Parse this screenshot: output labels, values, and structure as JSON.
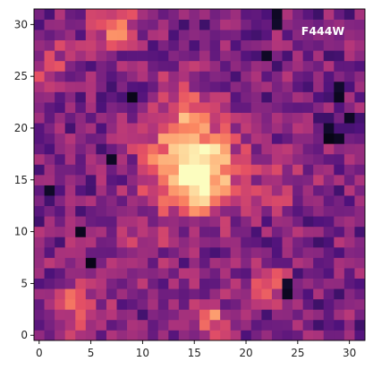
{
  "chart_data": {
    "type": "heatmap",
    "title": "",
    "xlabel": "",
    "ylabel": "",
    "annotation": "F444W",
    "colormap": "magma",
    "origin": "lower",
    "xlim": [
      -0.5,
      31.5
    ],
    "ylim": [
      -0.5,
      31.5
    ],
    "x_ticks": [
      0,
      5,
      10,
      15,
      20,
      25,
      30
    ],
    "y_ticks": [
      0,
      5,
      10,
      15,
      20,
      25,
      30
    ],
    "x_tick_labels": [
      "0",
      "5",
      "10",
      "15",
      "20",
      "25",
      "30"
    ],
    "y_tick_labels": [
      "0",
      "5",
      "10",
      "15",
      "20",
      "25",
      "30"
    ],
    "grid_size": [
      32,
      32
    ],
    "value_range": [
      0,
      1
    ],
    "values_note": "rows indexed from y=0 (bottom) to y=31 (top); values normalized 0-1 (approximate pixel intensities)",
    "source_blobs": [
      {
        "cx": 15.5,
        "cy": 15.5,
        "amp": 0.55,
        "sigma": 2.6
      },
      {
        "cx": 14.0,
        "cy": 17.0,
        "amp": 0.25,
        "sigma": 3.0
      },
      {
        "cx": 14.0,
        "cy": 22.0,
        "amp": 0.25,
        "sigma": 2.2
      },
      {
        "cx": 7.5,
        "cy": 30.0,
        "amp": 0.35,
        "sigma": 1.6
      },
      {
        "cx": 16.5,
        "cy": 1.5,
        "amp": 0.35,
        "sigma": 1.3
      },
      {
        "cx": 3.5,
        "cy": 3.0,
        "amp": 0.25,
        "sigma": 1.8
      },
      {
        "cx": 22.0,
        "cy": 5.0,
        "amp": 0.3,
        "sigma": 1.2
      },
      {
        "cx": 1.0,
        "cy": 26.0,
        "amp": 0.2,
        "sigma": 1.8
      },
      {
        "cx": 23.5,
        "cy": 15.0,
        "amp": 0.15,
        "sigma": 2.0
      },
      {
        "cx": 9.0,
        "cy": 9.0,
        "amp": 0.1,
        "sigma": 3.0
      }
    ],
    "dark_pixels": [
      {
        "x": 23,
        "y": 31
      },
      {
        "x": 23,
        "y": 30
      },
      {
        "x": 29,
        "y": 24
      },
      {
        "x": 29,
        "y": 23
      },
      {
        "x": 28,
        "y": 19
      },
      {
        "x": 29,
        "y": 19
      },
      {
        "x": 28,
        "y": 20
      },
      {
        "x": 7,
        "y": 17
      },
      {
        "x": 1,
        "y": 14
      },
      {
        "x": 4,
        "y": 10
      },
      {
        "x": 5,
        "y": 7
      },
      {
        "x": 24,
        "y": 5
      },
      {
        "x": 24,
        "y": 4
      },
      {
        "x": 30,
        "y": 21
      },
      {
        "x": 22,
        "y": 27
      },
      {
        "x": 9,
        "y": 23
      }
    ]
  }
}
